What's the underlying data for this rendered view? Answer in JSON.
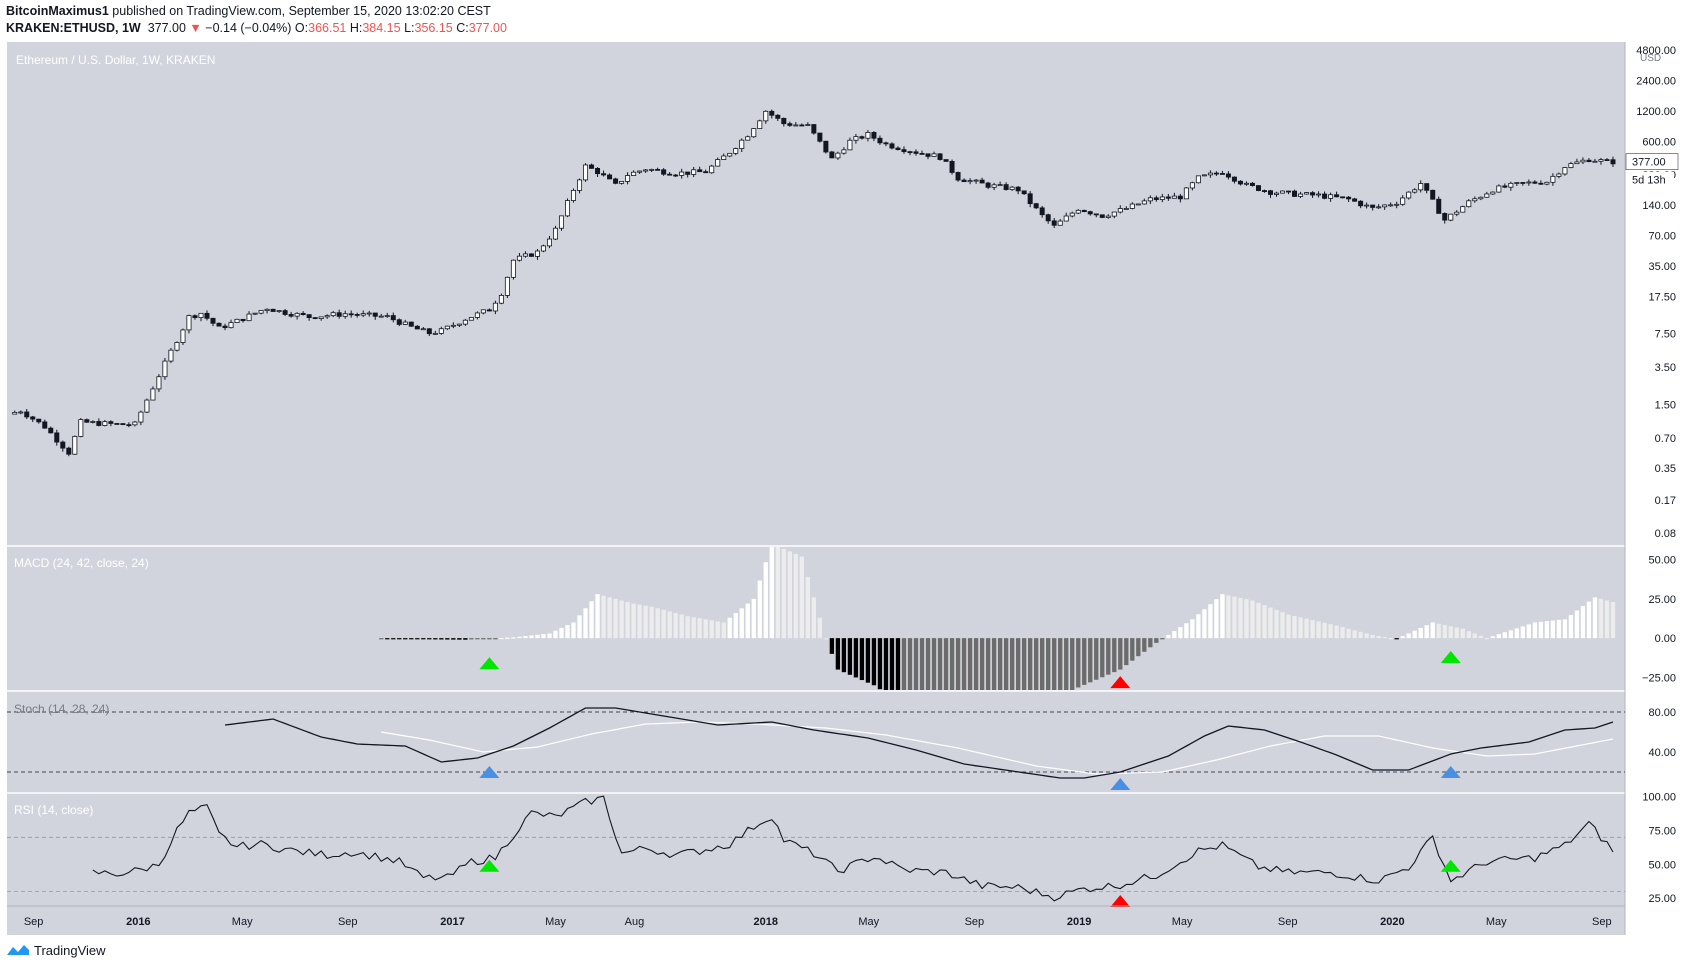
{
  "header": {
    "author": "BitcoinMaximus1",
    "published": "published on TradingView.com, September 15, 2020 13:02:20 CEST",
    "symbol": "KRAKEN:ETHUSD, 1W",
    "last": "377.00",
    "arrow": "▼",
    "change": "−0.14 (−0.04%)",
    "o_label": "O:",
    "o_val": "366.51",
    "h_label": "H:",
    "h_val": "384.15",
    "l_label": "L:",
    "l_val": "356.15",
    "c_label": "C:",
    "c_val": "377.00"
  },
  "footer": {
    "brand": "TradingView",
    "logo_icon": "tradingview-logo-icon"
  },
  "colors": {
    "panel_bg": "#d1d4dc",
    "candle": "#131722",
    "green": "#00e600",
    "red": "#ff0000",
    "blue": "#4a90e2",
    "hist_light": "#ffffff",
    "hist_dark": "#000000"
  },
  "chart_data": {
    "type": "candlestick",
    "main": {
      "title": "Ethereum / U.S. Dollar, 1W, KRAKEN",
      "scale": "log",
      "unit": "USD",
      "y_ticks": [
        "4800.00",
        "2400.00",
        "1200.00",
        "600.00",
        "280.00",
        "140.00",
        "70.00",
        "35.00",
        "17.50",
        "7.50",
        "3.50",
        "1.50",
        "0.70",
        "0.35",
        "0.17",
        "0.08"
      ],
      "last_price_label": "377.00",
      "countdown_label": "5d 13h",
      "anchors": [
        [
          "2015-08-10",
          1.2
        ],
        [
          "2015-08-24",
          1.3
        ],
        [
          "2015-09-21",
          0.9
        ],
        [
          "2015-10-19",
          0.5
        ],
        [
          "2015-11-02",
          1.0
        ],
        [
          "2015-12-14",
          0.95
        ],
        [
          "2016-01-04",
          0.95
        ],
        [
          "2016-01-25",
          2.2
        ],
        [
          "2016-02-15",
          5.0
        ],
        [
          "2016-03-07",
          11.0
        ],
        [
          "2016-03-21",
          12.0
        ],
        [
          "2016-04-11",
          8.5
        ],
        [
          "2016-05-02",
          10.0
        ],
        [
          "2016-06-06",
          13.5
        ],
        [
          "2016-06-20",
          12.5
        ],
        [
          "2016-07-25",
          11.0
        ],
        [
          "2016-09-05",
          11.8
        ],
        [
          "2016-10-24",
          11.0
        ],
        [
          "2016-11-21",
          8.7
        ],
        [
          "2016-12-12",
          7.6
        ],
        [
          "2016-12-26",
          8.0
        ],
        [
          "2017-01-23",
          10.5
        ],
        [
          "2017-02-20",
          13.0
        ],
        [
          "2017-03-06",
          19.0
        ],
        [
          "2017-03-20",
          40.0
        ],
        [
          "2017-04-17",
          48.0
        ],
        [
          "2017-05-08",
          80.0
        ],
        [
          "2017-05-29",
          200.0
        ],
        [
          "2017-06-12",
          340.0
        ],
        [
          "2017-06-26",
          300.0
        ],
        [
          "2017-07-17",
          220.0
        ],
        [
          "2017-07-31",
          280.0
        ],
        [
          "2017-08-21",
          320.0
        ],
        [
          "2017-09-25",
          290.0
        ],
        [
          "2017-10-30",
          300.0
        ],
        [
          "2017-11-27",
          470.0
        ],
        [
          "2017-12-18",
          700.0
        ],
        [
          "2018-01-08",
          1200.0
        ],
        [
          "2018-01-29",
          900.0
        ],
        [
          "2018-02-26",
          850.0
        ],
        [
          "2018-03-26",
          400.0
        ],
        [
          "2018-04-16",
          600.0
        ],
        [
          "2018-05-07",
          700.0
        ],
        [
          "2018-05-28",
          560.0
        ],
        [
          "2018-07-02",
          470.0
        ],
        [
          "2018-07-30",
          420.0
        ],
        [
          "2018-08-20",
          260.0
        ],
        [
          "2018-09-24",
          220.0
        ],
        [
          "2018-10-29",
          200.0
        ],
        [
          "2018-11-26",
          110.0
        ],
        [
          "2018-12-10",
          86.0
        ],
        [
          "2019-01-07",
          130.0
        ],
        [
          "2019-02-04",
          110.0
        ],
        [
          "2019-03-04",
          130.0
        ],
        [
          "2019-04-01",
          160.0
        ],
        [
          "2019-05-06",
          170.0
        ],
        [
          "2019-05-27",
          260.0
        ],
        [
          "2019-06-24",
          300.0
        ],
        [
          "2019-07-22",
          220.0
        ],
        [
          "2019-08-19",
          190.0
        ],
        [
          "2019-09-16",
          180.0
        ],
        [
          "2019-10-14",
          175.0
        ],
        [
          "2019-11-18",
          160.0
        ],
        [
          "2019-12-16",
          130.0
        ],
        [
          "2020-01-13",
          150.0
        ],
        [
          "2020-02-10",
          230.0
        ],
        [
          "2020-03-09",
          100.0
        ],
        [
          "2020-04-06",
          150.0
        ],
        [
          "2020-05-04",
          200.0
        ],
        [
          "2020-06-08",
          230.0
        ],
        [
          "2020-07-06",
          240.0
        ],
        [
          "2020-07-27",
          340.0
        ],
        [
          "2020-08-24",
          400.0
        ],
        [
          "2020-09-14",
          377.0
        ]
      ]
    },
    "macd": {
      "title": "MACD (24, 42, close, 24)",
      "y_ticks": [
        50,
        25,
        0,
        -25
      ],
      "y_labels": [
        "50.00",
        "25.00",
        "0.00",
        "−25.00"
      ],
      "ylim": [
        -33,
        58
      ],
      "start": "2016-10-10",
      "anchors": [
        [
          "2016-10-10",
          -0.5
        ],
        [
          "2017-01-16",
          -1
        ],
        [
          "2017-03-13",
          0.5
        ],
        [
          "2017-04-24",
          3
        ],
        [
          "2017-05-22",
          10
        ],
        [
          "2017-06-19",
          28
        ],
        [
          "2017-07-31",
          22
        ],
        [
          "2017-08-21",
          20
        ],
        [
          "2017-10-02",
          14
        ],
        [
          "2017-11-13",
          10
        ],
        [
          "2017-12-18",
          25
        ],
        [
          "2018-01-08",
          60
        ],
        [
          "2018-02-12",
          52
        ],
        [
          "2018-03-12",
          0
        ],
        [
          "2018-03-26",
          -20
        ],
        [
          "2018-05-07",
          -30
        ],
        [
          "2018-06-04",
          -40
        ],
        [
          "2018-09-03",
          -40
        ],
        [
          "2018-11-26",
          -40
        ],
        [
          "2018-12-24",
          -33
        ],
        [
          "2019-02-18",
          -20
        ],
        [
          "2019-04-01",
          -3
        ],
        [
          "2019-05-13",
          12
        ],
        [
          "2019-06-17",
          28
        ],
        [
          "2019-07-22",
          24
        ],
        [
          "2019-09-02",
          15
        ],
        [
          "2019-10-28",
          8
        ],
        [
          "2019-12-09",
          2
        ],
        [
          "2020-01-06",
          -0.5
        ],
        [
          "2020-02-17",
          10
        ],
        [
          "2020-03-23",
          6
        ],
        [
          "2020-04-20",
          0
        ],
        [
          "2020-06-15",
          10
        ],
        [
          "2020-07-20",
          12
        ],
        [
          "2020-08-24",
          26
        ],
        [
          "2020-09-14",
          23
        ]
      ],
      "markers": [
        {
          "date": "2017-02-13",
          "color": "green",
          "level": -16
        },
        {
          "date": "2019-02-18",
          "color": "red",
          "level": -28
        },
        {
          "date": "2020-03-09",
          "color": "green",
          "level": -12
        }
      ]
    },
    "stoch": {
      "title": "Stoch (14, 28, 24)",
      "y_ticks": [
        80,
        40
      ],
      "y_labels": [
        "80.00",
        "40.00"
      ],
      "levels": [
        80,
        20
      ],
      "ylim": [
        0,
        100
      ],
      "k_anchors": [
        [
          "2016-04-11",
          67
        ],
        [
          "2016-06-06",
          73
        ],
        [
          "2016-08-01",
          55
        ],
        [
          "2016-09-12",
          48
        ],
        [
          "2016-11-07",
          46
        ],
        [
          "2016-12-19",
          30
        ],
        [
          "2017-01-30",
          34
        ],
        [
          "2017-03-13",
          46
        ],
        [
          "2017-04-24",
          64
        ],
        [
          "2017-06-05",
          84
        ],
        [
          "2017-07-10",
          84
        ],
        [
          "2017-09-04",
          76
        ],
        [
          "2017-11-06",
          67
        ],
        [
          "2018-01-08",
          70
        ],
        [
          "2018-02-26",
          62
        ],
        [
          "2018-04-30",
          54
        ],
        [
          "2018-06-25",
          42
        ],
        [
          "2018-08-20",
          28
        ],
        [
          "2018-10-15",
          21
        ],
        [
          "2018-12-10",
          14
        ],
        [
          "2019-01-07",
          14
        ],
        [
          "2019-02-18",
          20
        ],
        [
          "2019-04-15",
          36
        ],
        [
          "2019-05-27",
          56
        ],
        [
          "2019-06-24",
          66
        ],
        [
          "2019-08-05",
          62
        ],
        [
          "2019-09-16",
          50
        ],
        [
          "2019-10-28",
          37
        ],
        [
          "2019-12-09",
          22
        ],
        [
          "2020-01-20",
          22
        ],
        [
          "2020-03-09",
          38
        ],
        [
          "2020-04-13",
          44
        ],
        [
          "2020-06-08",
          50
        ],
        [
          "2020-07-20",
          62
        ],
        [
          "2020-08-24",
          64
        ],
        [
          "2020-09-14",
          70
        ]
      ],
      "d_anchors": [
        [
          "2016-10-10",
          60
        ],
        [
          "2016-12-05",
          52
        ],
        [
          "2017-02-06",
          40
        ],
        [
          "2017-04-10",
          45
        ],
        [
          "2017-06-12",
          58
        ],
        [
          "2017-08-14",
          68
        ],
        [
          "2017-10-16",
          70
        ],
        [
          "2017-12-18",
          68
        ],
        [
          "2018-03-12",
          64
        ],
        [
          "2018-05-21",
          57
        ],
        [
          "2018-08-13",
          44
        ],
        [
          "2018-11-12",
          26
        ],
        [
          "2019-01-21",
          18
        ],
        [
          "2019-04-08",
          20
        ],
        [
          "2019-06-10",
          32
        ],
        [
          "2019-08-12",
          46
        ],
        [
          "2019-10-14",
          56
        ],
        [
          "2019-12-16",
          56
        ],
        [
          "2020-02-17",
          44
        ],
        [
          "2020-04-20",
          36
        ],
        [
          "2020-06-15",
          38
        ],
        [
          "2020-09-14",
          53
        ]
      ],
      "markers": [
        {
          "date": "2017-02-13",
          "color": "blue",
          "level": 20
        },
        {
          "date": "2019-02-18",
          "color": "blue",
          "level": 8
        },
        {
          "date": "2020-03-09",
          "color": "blue",
          "level": 20
        }
      ]
    },
    "rsi": {
      "title": "RSI (14, close)",
      "y_ticks": [
        100,
        75,
        50,
        25
      ],
      "y_labels": [
        "100.00",
        "75.00",
        "50.00",
        "25.00"
      ],
      "levels": [
        70,
        30
      ],
      "ylim": [
        20,
        102
      ],
      "anchors": [
        [
          "2015-11-09",
          44
        ],
        [
          "2015-12-07",
          43
        ],
        [
          "2016-01-04",
          46
        ],
        [
          "2016-01-25",
          50
        ],
        [
          "2016-02-15",
          75
        ],
        [
          "2016-02-29",
          88
        ],
        [
          "2016-03-21",
          92
        ],
        [
          "2016-04-04",
          72
        ],
        [
          "2016-04-25",
          63
        ],
        [
          "2016-05-23",
          65
        ],
        [
          "2016-06-13",
          62
        ],
        [
          "2016-07-11",
          59
        ],
        [
          "2016-08-08",
          57
        ],
        [
          "2016-09-05",
          59
        ],
        [
          "2016-10-03",
          56
        ],
        [
          "2016-10-31",
          52
        ],
        [
          "2016-11-28",
          40
        ],
        [
          "2016-12-26",
          40
        ],
        [
          "2017-01-23",
          52
        ],
        [
          "2017-02-20",
          55
        ],
        [
          "2017-03-13",
          72
        ],
        [
          "2017-04-03",
          88
        ],
        [
          "2017-05-01",
          85
        ],
        [
          "2017-06-05",
          96
        ],
        [
          "2017-06-26",
          99
        ],
        [
          "2017-07-17",
          58
        ],
        [
          "2017-08-14",
          62
        ],
        [
          "2017-09-18",
          57
        ],
        [
          "2017-10-16",
          60
        ],
        [
          "2017-11-20",
          65
        ],
        [
          "2017-12-18",
          78
        ],
        [
          "2018-01-08",
          86
        ],
        [
          "2018-01-22",
          68
        ],
        [
          "2018-02-26",
          58
        ],
        [
          "2018-03-26",
          45
        ],
        [
          "2018-05-07",
          56
        ],
        [
          "2018-06-11",
          46
        ],
        [
          "2018-07-30",
          44
        ],
        [
          "2018-09-10",
          34
        ],
        [
          "2018-10-22",
          33
        ],
        [
          "2018-12-03",
          26
        ],
        [
          "2019-01-07",
          32
        ],
        [
          "2019-02-18",
          35
        ],
        [
          "2019-04-01",
          42
        ],
        [
          "2019-05-20",
          60
        ],
        [
          "2019-06-17",
          64
        ],
        [
          "2019-07-29",
          48
        ],
        [
          "2019-09-02",
          44
        ],
        [
          "2019-10-21",
          44
        ],
        [
          "2019-12-16",
          38
        ],
        [
          "2020-01-20",
          48
        ],
        [
          "2020-02-17",
          70
        ],
        [
          "2020-03-09",
          38
        ],
        [
          "2020-04-20",
          52
        ],
        [
          "2020-06-15",
          55
        ],
        [
          "2020-07-20",
          64
        ],
        [
          "2020-08-17",
          80
        ],
        [
          "2020-09-14",
          60
        ]
      ],
      "markers": [
        {
          "date": "2017-02-13",
          "color": "green",
          "level": 49
        },
        {
          "date": "2019-02-18",
          "color": "red",
          "level": 23
        },
        {
          "date": "2020-03-09",
          "color": "green",
          "level": 49
        }
      ]
    },
    "x_axis": {
      "range": [
        "2015-08-01",
        "2020-09-28"
      ],
      "ticks": [
        {
          "date": "2015-09-01",
          "label": "Sep",
          "bold": false
        },
        {
          "date": "2016-01-01",
          "label": "2016",
          "bold": true
        },
        {
          "date": "2016-05-01",
          "label": "May",
          "bold": false
        },
        {
          "date": "2016-09-01",
          "label": "Sep",
          "bold": false
        },
        {
          "date": "2017-01-01",
          "label": "2017",
          "bold": true
        },
        {
          "date": "2017-05-01",
          "label": "May",
          "bold": false
        },
        {
          "date": "2017-08-01",
          "label": "Aug",
          "bold": false
        },
        {
          "date": "2018-01-01",
          "label": "2018",
          "bold": true
        },
        {
          "date": "2018-05-01",
          "label": "May",
          "bold": false
        },
        {
          "date": "2018-09-01",
          "label": "Sep",
          "bold": false
        },
        {
          "date": "2019-01-01",
          "label": "2019",
          "bold": true
        },
        {
          "date": "2019-05-01",
          "label": "May",
          "bold": false
        },
        {
          "date": "2019-09-01",
          "label": "Sep",
          "bold": false
        },
        {
          "date": "2020-01-01",
          "label": "2020",
          "bold": true
        },
        {
          "date": "2020-05-01",
          "label": "May",
          "bold": false
        },
        {
          "date": "2020-09-01",
          "label": "Sep",
          "bold": false
        }
      ]
    }
  }
}
